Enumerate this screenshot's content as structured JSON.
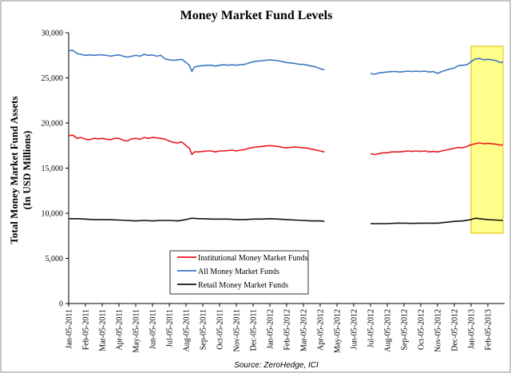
{
  "chart_data": {
    "type": "line",
    "title": "Money Market Fund Levels",
    "ylabel_line1": "Total Money Market Fund Assets",
    "ylabel_line2": "(In USD Millions)",
    "source": "Source: ZeroHedge, ICI",
    "ylim": [
      0,
      30000
    ],
    "yticks": [
      "0",
      "5,000",
      "10,000",
      "15,000",
      "20,000",
      "25,000",
      "30,000"
    ],
    "ytick_values": [
      0,
      5000,
      10000,
      15000,
      20000,
      25000,
      30000
    ],
    "xticks": [
      "Jan-05-2011",
      "Feb-05-2011",
      "Mar-05-2011",
      "Apr-05-2011",
      "May-05-2011",
      "Jun-05-2011",
      "Jul-05-2011",
      "Aug-05-2011",
      "Sep-05-2011",
      "Oct-05-2011",
      "Nov-05-2011",
      "Dec-05-2011",
      "Jan-05-2012",
      "Feb-05-2012",
      "Mar-05-2012",
      "Apr-05-2012",
      "May-05-2012",
      "Jun-05-2012",
      "Jul-05-2012",
      "Aug-05-2012",
      "Sep-05-2012",
      "Oct-05-2012",
      "Nov-05-2012",
      "Dec-05-2012",
      "Jan-05-2013",
      "Feb-05-2013"
    ],
    "xlim": [
      0,
      26
    ],
    "grid": false,
    "legend_placement": "bottom-center",
    "highlight": {
      "x_start": 24.0,
      "x_end": 26.0,
      "color": "#ffff66",
      "border": "#e6c619"
    },
    "series": [
      {
        "name": "Institutional Money Market Funds",
        "color": "#e8181b",
        "segments": [
          [
            [
              0,
              18600
            ],
            [
              0.25,
              18650
            ],
            [
              0.5,
              18300
            ],
            [
              0.75,
              18400
            ],
            [
              1,
              18200
            ],
            [
              1.25,
              18150
            ],
            [
              1.5,
              18300
            ],
            [
              1.75,
              18250
            ],
            [
              2,
              18300
            ],
            [
              2.25,
              18200
            ],
            [
              2.5,
              18150
            ],
            [
              2.75,
              18300
            ],
            [
              3,
              18300
            ],
            [
              3.25,
              18100
            ],
            [
              3.5,
              18000
            ],
            [
              3.75,
              18250
            ],
            [
              4,
              18300
            ],
            [
              4.25,
              18200
            ],
            [
              4.5,
              18400
            ],
            [
              4.75,
              18300
            ],
            [
              5,
              18400
            ],
            [
              5.25,
              18350
            ],
            [
              5.5,
              18300
            ],
            [
              5.75,
              18200
            ],
            [
              6,
              18000
            ],
            [
              6.25,
              17850
            ],
            [
              6.5,
              17800
            ],
            [
              6.75,
              17900
            ],
            [
              7,
              17500
            ],
            [
              7.2,
              17200
            ],
            [
              7.35,
              16500
            ],
            [
              7.5,
              16800
            ],
            [
              7.75,
              16800
            ],
            [
              8,
              16850
            ],
            [
              8.25,
              16900
            ],
            [
              8.5,
              16900
            ],
            [
              8.75,
              16800
            ],
            [
              9,
              16900
            ],
            [
              9.25,
              16900
            ],
            [
              9.5,
              16950
            ],
            [
              9.75,
              17000
            ],
            [
              10,
              16900
            ],
            [
              10.25,
              17000
            ],
            [
              10.5,
              17050
            ],
            [
              10.75,
              17200
            ],
            [
              11,
              17300
            ],
            [
              11.25,
              17350
            ],
            [
              11.5,
              17400
            ],
            [
              11.75,
              17450
            ],
            [
              12,
              17500
            ],
            [
              12.25,
              17450
            ],
            [
              12.5,
              17400
            ],
            [
              12.75,
              17300
            ],
            [
              13,
              17250
            ],
            [
              13.25,
              17300
            ],
            [
              13.5,
              17350
            ],
            [
              13.75,
              17300
            ],
            [
              14,
              17250
            ],
            [
              14.25,
              17200
            ],
            [
              14.5,
              17100
            ],
            [
              14.75,
              17000
            ],
            [
              15,
              16900
            ],
            [
              15.25,
              16800
            ]
          ],
          [
            [
              18,
              16600
            ],
            [
              18.25,
              16500
            ],
            [
              18.5,
              16600
            ],
            [
              18.75,
              16700
            ],
            [
              19,
              16700
            ],
            [
              19.25,
              16800
            ],
            [
              19.5,
              16800
            ],
            [
              19.75,
              16800
            ],
            [
              20,
              16850
            ],
            [
              20.25,
              16900
            ],
            [
              20.5,
              16850
            ],
            [
              20.75,
              16900
            ],
            [
              21,
              16850
            ],
            [
              21.25,
              16900
            ],
            [
              21.5,
              16800
            ],
            [
              21.75,
              16850
            ],
            [
              22,
              16800
            ],
            [
              22.25,
              16900
            ],
            [
              22.5,
              17000
            ],
            [
              22.75,
              17100
            ],
            [
              23,
              17200
            ],
            [
              23.25,
              17300
            ],
            [
              23.5,
              17250
            ],
            [
              23.75,
              17400
            ],
            [
              24,
              17600
            ],
            [
              24.25,
              17700
            ],
            [
              24.5,
              17800
            ],
            [
              24.75,
              17700
            ],
            [
              25,
              17750
            ],
            [
              25.25,
              17700
            ],
            [
              25.5,
              17650
            ],
            [
              25.75,
              17550
            ],
            [
              25.9,
              17600
            ]
          ]
        ]
      },
      {
        "name": "All Money Market Funds",
        "color": "#3b78c2",
        "segments": [
          [
            [
              0,
              28000
            ],
            [
              0.25,
              28050
            ],
            [
              0.5,
              27700
            ],
            [
              0.75,
              27600
            ],
            [
              1,
              27500
            ],
            [
              1.25,
              27550
            ],
            [
              1.5,
              27500
            ],
            [
              1.75,
              27550
            ],
            [
              2,
              27550
            ],
            [
              2.25,
              27500
            ],
            [
              2.5,
              27400
            ],
            [
              2.75,
              27500
            ],
            [
              3,
              27550
            ],
            [
              3.25,
              27400
            ],
            [
              3.5,
              27300
            ],
            [
              3.75,
              27400
            ],
            [
              4,
              27500
            ],
            [
              4.25,
              27400
            ],
            [
              4.5,
              27600
            ],
            [
              4.75,
              27500
            ],
            [
              5,
              27550
            ],
            [
              5.25,
              27400
            ],
            [
              5.5,
              27500
            ],
            [
              5.75,
              27100
            ],
            [
              6,
              27000
            ],
            [
              6.25,
              26950
            ],
            [
              6.5,
              27000
            ],
            [
              6.75,
              27050
            ],
            [
              7,
              26700
            ],
            [
              7.2,
              26400
            ],
            [
              7.35,
              25700
            ],
            [
              7.5,
              26200
            ],
            [
              7.75,
              26300
            ],
            [
              8,
              26350
            ],
            [
              8.25,
              26400
            ],
            [
              8.5,
              26400
            ],
            [
              8.75,
              26300
            ],
            [
              9,
              26400
            ],
            [
              9.25,
              26450
            ],
            [
              9.5,
              26400
            ],
            [
              9.75,
              26450
            ],
            [
              10,
              26400
            ],
            [
              10.25,
              26450
            ],
            [
              10.5,
              26500
            ],
            [
              10.75,
              26650
            ],
            [
              11,
              26800
            ],
            [
              11.25,
              26850
            ],
            [
              11.5,
              26900
            ],
            [
              11.75,
              26950
            ],
            [
              12,
              27000
            ],
            [
              12.25,
              26950
            ],
            [
              12.5,
              26900
            ],
            [
              12.75,
              26800
            ],
            [
              13,
              26700
            ],
            [
              13.25,
              26650
            ],
            [
              13.5,
              26600
            ],
            [
              13.75,
              26500
            ],
            [
              14,
              26500
            ],
            [
              14.25,
              26400
            ],
            [
              14.5,
              26300
            ],
            [
              14.75,
              26200
            ],
            [
              15,
              26000
            ],
            [
              15.25,
              25900
            ]
          ],
          [
            [
              18,
              25500
            ],
            [
              18.25,
              25400
            ],
            [
              18.5,
              25550
            ],
            [
              18.75,
              25600
            ],
            [
              19,
              25650
            ],
            [
              19.25,
              25700
            ],
            [
              19.5,
              25700
            ],
            [
              19.75,
              25650
            ],
            [
              20,
              25700
            ],
            [
              20.25,
              25750
            ],
            [
              20.5,
              25700
            ],
            [
              20.75,
              25750
            ],
            [
              21,
              25700
            ],
            [
              21.25,
              25750
            ],
            [
              21.5,
              25650
            ],
            [
              21.75,
              25700
            ],
            [
              22,
              25500
            ],
            [
              22.25,
              25700
            ],
            [
              22.5,
              25850
            ],
            [
              22.75,
              26000
            ],
            [
              23,
              26100
            ],
            [
              23.25,
              26350
            ],
            [
              23.5,
              26400
            ],
            [
              23.75,
              26450
            ],
            [
              24,
              26800
            ],
            [
              24.25,
              27100
            ],
            [
              24.5,
              27150
            ],
            [
              24.75,
              27000
            ],
            [
              25,
              27050
            ],
            [
              25.25,
              27000
            ],
            [
              25.5,
              26900
            ],
            [
              25.75,
              26700
            ],
            [
              25.9,
              26750
            ]
          ]
        ]
      },
      {
        "name": "Retail Money Market Funds",
        "color": "#111111",
        "segments": [
          [
            [
              0,
              9400
            ],
            [
              0.5,
              9400
            ],
            [
              1,
              9350
            ],
            [
              1.5,
              9300
            ],
            [
              2,
              9300
            ],
            [
              2.5,
              9280
            ],
            [
              3,
              9250
            ],
            [
              3.5,
              9200
            ],
            [
              4,
              9150
            ],
            [
              4.5,
              9200
            ],
            [
              5,
              9150
            ],
            [
              5.5,
              9200
            ],
            [
              6,
              9200
            ],
            [
              6.5,
              9150
            ],
            [
              7,
              9300
            ],
            [
              7.35,
              9450
            ],
            [
              7.75,
              9400
            ],
            [
              8,
              9400
            ],
            [
              8.5,
              9350
            ],
            [
              9,
              9350
            ],
            [
              9.5,
              9350
            ],
            [
              10,
              9300
            ],
            [
              10.5,
              9300
            ],
            [
              11,
              9350
            ],
            [
              11.5,
              9350
            ],
            [
              12,
              9400
            ],
            [
              12.5,
              9350
            ],
            [
              13,
              9300
            ],
            [
              13.5,
              9250
            ],
            [
              14,
              9200
            ],
            [
              14.5,
              9150
            ],
            [
              15,
              9150
            ],
            [
              15.25,
              9100
            ]
          ],
          [
            [
              18,
              8850
            ],
            [
              18.5,
              8850
            ],
            [
              19,
              8850
            ],
            [
              19.5,
              8900
            ],
            [
              20,
              8900
            ],
            [
              20.5,
              8880
            ],
            [
              21,
              8900
            ],
            [
              21.5,
              8900
            ],
            [
              22,
              8900
            ],
            [
              22.5,
              9000
            ],
            [
              23,
              9100
            ],
            [
              23.5,
              9150
            ],
            [
              24,
              9300
            ],
            [
              24.25,
              9450
            ],
            [
              24.5,
              9400
            ],
            [
              25,
              9300
            ],
            [
              25.5,
              9250
            ],
            [
              25.9,
              9200
            ]
          ]
        ]
      }
    ]
  }
}
